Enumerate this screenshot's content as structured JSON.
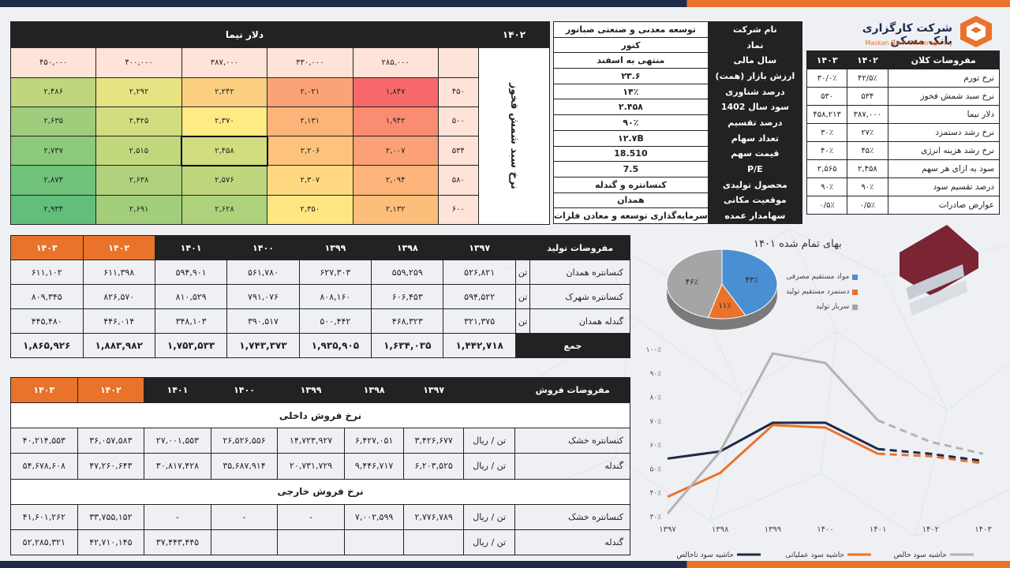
{
  "sensitivity": {
    "year": "۱۴۰۲",
    "header_label": "دلار نیما",
    "row_axis_label": "نرخ سبد شمش فخوز",
    "dollar_values": [
      "۲۸۵,۰۰۰",
      "۳۳۰,۰۰۰",
      "۳۸۷,۰۰۰",
      "۴۰۰,۰۰۰",
      "۴۵۰,۰۰۰"
    ],
    "rows": [
      {
        "rate": "۴۵۰",
        "cells": [
          "۱,۸۴۷",
          "۲,۰۲۱",
          "۲,۲۴۲",
          "۲,۲۹۲",
          "۲,۴۸۶"
        ]
      },
      {
        "rate": "۵۰۰",
        "cells": [
          "۱,۹۴۲",
          "۲,۱۳۱",
          "۲,۳۷۰",
          "۲,۴۲۵",
          "۲,۶۳۵"
        ]
      },
      {
        "rate": "۵۳۴",
        "cells": [
          "۲,۰۰۷",
          "۲,۲۰۶",
          "۲,۴۵۸",
          "۲,۵۱۵",
          "۲,۷۳۷"
        ]
      },
      {
        "rate": "۵۸۰",
        "cells": [
          "۲,۰۹۴",
          "۲,۳۰۷",
          "۲,۵۷۶",
          "۲,۶۳۸",
          "۲,۸۷۴"
        ]
      },
      {
        "rate": "۶۰۰",
        "cells": [
          "۲,۱۳۲",
          "۲,۳۵۰",
          "۲,۶۲۸",
          "۲,۶۹۱",
          "۲,۹۳۴"
        ]
      }
    ],
    "colors": [
      [
        "#f8696b",
        "#fba276",
        "#fbcf7f",
        "#e7e382",
        "#bfd67d"
      ],
      [
        "#fa8c72",
        "#fcb479",
        "#ffea84",
        "#d2dd80",
        "#9fcd7b"
      ],
      [
        "#fca077",
        "#fdc37c",
        "#d2dd80",
        "#c2d87d",
        "#8cc97a"
      ],
      [
        "#fdb47a",
        "#fed981",
        "#bfd67d",
        "#b0d27c",
        "#70c179"
      ],
      [
        "#fdbd7b",
        "#ffe683",
        "#aed27c",
        "#a2ce7b",
        "#63be7b"
      ]
    ],
    "header_color": "#fde3d8"
  },
  "company": {
    "rows": [
      {
        "k": "نام شرکت",
        "v": "توسعه معدنی و صنعتی صبانور"
      },
      {
        "k": "نماد",
        "v": "کنور"
      },
      {
        "k": "سال مالی",
        "v": "منتهی به اسفند"
      },
      {
        "k": "ارزش بازار (همت)",
        "v": "۲۳.۶"
      },
      {
        "k": "درصد شناوری",
        "v": "۱۴٪"
      },
      {
        "k": "سود سال 1402",
        "v": "۲.۴۵۸"
      },
      {
        "k": "درصد تقسیم",
        "v": "۹۰٪"
      },
      {
        "k": "تعداد سهام",
        "v": "۱۲.۷B"
      },
      {
        "k": "قیمت سهم",
        "v": "18.510"
      },
      {
        "k": "P/E",
        "v": "7.5"
      },
      {
        "k": "محصول تولیدی",
        "v": "کنسانتره و گندله"
      },
      {
        "k": "موقعیت مکانی",
        "v": "همدان"
      },
      {
        "k": "سهامدار عمده",
        "v": "سرمایه‌گذاری توسعه و معادن فلزات"
      }
    ]
  },
  "logo": {
    "name": "شرکت کارگزاری بانک مسکن",
    "sub": "Maskan Bank Brokerage co."
  },
  "macro": {
    "header": [
      "مفروضات کلان",
      "۱۴۰۲",
      "۱۴۰۳"
    ],
    "rows": [
      {
        "k": "نرخ تورم",
        "a": "۴۲/۵٪",
        "b": "۳۰/۰٪"
      },
      {
        "k": "نرخ سبد شمش فخوز",
        "a": "۵۳۴",
        "b": "۵۳۰"
      },
      {
        "k": "دلار نیما",
        "a": "۳۸۷,۰۰۰",
        "b": "۴۵۸,۲۱۳"
      },
      {
        "k": "نرخ رشد دستمزد",
        "a": "۲۷٪",
        "b": "۳۰٪"
      },
      {
        "k": "نرخ رشد هزینه انرژی",
        "a": "۴۵٪",
        "b": "۴۰٪"
      },
      {
        "k": "سود به ازای هر سهم",
        "a": "۲,۴۵۸",
        "b": "۲,۵۶۵"
      },
      {
        "k": "درصد تقسیم سود",
        "a": "۹۰٪",
        "b": "۹۰٪"
      },
      {
        "k": "عوارض صادرات",
        "a": "۰/۵٪",
        "b": "۰/۵٪"
      }
    ]
  },
  "production": {
    "header": [
      "مفروضات تولید",
      "",
      "۱۳۹۷",
      "۱۳۹۸",
      "۱۳۹۹",
      "۱۴۰۰",
      "۱۴۰۱",
      "۱۴۰۲",
      "۱۴۰۳"
    ],
    "rows": [
      {
        "k": "کنسانتره همدان",
        "u": "تن",
        "v": [
          "۵۲۶,۸۲۱",
          "۵۵۹,۲۵۹",
          "۶۲۷,۳۰۳",
          "۵۶۱,۷۸۰",
          "۵۹۴,۹۰۱",
          "۶۱۱,۳۹۸",
          "۶۱۱,۱۰۲"
        ]
      },
      {
        "k": "کنسانتره شهرک",
        "u": "تن",
        "v": [
          "۵۹۴,۵۲۲",
          "۶۰۶,۴۵۳",
          "۸۰۸,۱۶۰",
          "۷۹۱,۰۷۶",
          "۸۱۰,۵۲۹",
          "۸۲۶,۵۷۰",
          "۸۰۹,۳۴۵"
        ]
      },
      {
        "k": "گندله همدان",
        "u": "تن",
        "v": [
          "۳۲۱,۳۷۵",
          "۴۶۸,۳۲۳",
          "۵۰۰,۴۴۲",
          "۳۹۰,۵۱۷",
          "۳۴۸,۱۰۳",
          "۴۴۶,۰۱۴",
          "۴۴۵,۴۸۰"
        ]
      }
    ],
    "total": {
      "k": "جمع",
      "v": [
        "۱,۴۴۲,۷۱۸",
        "۱,۶۳۴,۰۳۵",
        "۱,۹۳۵,۹۰۵",
        "۱,۷۴۳,۳۷۳",
        "۱,۷۵۳,۵۳۳",
        "۱,۸۸۳,۹۸۲",
        "۱,۸۶۵,۹۲۶"
      ]
    }
  },
  "sales": {
    "header": [
      "مفروضات فروش",
      "",
      "۱۳۹۷",
      "۱۳۹۸",
      "۱۳۹۹",
      "۱۴۰۰",
      "۱۴۰۱",
      "۱۴۰۲",
      "۱۴۰۳"
    ],
    "domestic_title": "نرخ فروش داخلی",
    "domestic": [
      {
        "k": "کنسانتره خشک",
        "u": "تن / ریال",
        "v": [
          "۳,۴۲۶,۶۷۷",
          "۶,۴۲۷,۰۵۱",
          "۱۴,۷۲۳,۹۲۷",
          "۲۶,۵۲۶,۵۵۶",
          "۲۷,۰۰۱,۵۵۳",
          "۳۶,۰۵۷,۵۸۳",
          "۴۰,۲۱۴,۵۵۳"
        ]
      },
      {
        "k": "گندله",
        "u": "تن / ریال",
        "v": [
          "۶,۲۰۳,۵۲۵",
          "۹,۴۴۶,۷۱۷",
          "۲۰,۷۳۱,۷۲۹",
          "۳۵,۶۸۷,۹۱۴",
          "۳۰,۸۱۷,۴۲۸",
          "۴۷,۲۶۰,۶۴۳",
          "۵۴,۶۷۸,۶۰۸"
        ]
      }
    ],
    "export_title": "نرخ فروش خارجی",
    "export": [
      {
        "k": "کنسانتره خشک",
        "u": "تن / ریال",
        "v": [
          "۲,۷۷۶,۷۸۹",
          "۷,۰۰۲,۵۹۹",
          "-",
          "-",
          "-",
          "۳۳,۷۵۵,۱۵۲",
          "۴۱,۶۰۱,۲۶۲"
        ]
      },
      {
        "k": "گندله",
        "u": "تن / ریال",
        "v": [
          "",
          "",
          "",
          "",
          "۳۷,۴۴۳,۴۴۵",
          "۴۲,۷۱۰,۱۴۵",
          "۵۲,۲۸۵,۳۲۱"
        ]
      }
    ]
  },
  "pie": {
    "title": "بهای تمام شده ۱۴۰۱",
    "slices": [
      {
        "name": "مواد مستقیم مصرفی",
        "value": 43,
        "label": "۴۳٪",
        "color": "#4a8fd4"
      },
      {
        "name": "دستمزد مستقیم تولید",
        "value": 11,
        "label": "۱۱٪",
        "color": "#e9732a"
      },
      {
        "name": "سربار تولید",
        "value": 46,
        "label": "۴۶٪",
        "color": "#a5a5a5"
      }
    ]
  },
  "chart_data": {
    "type": "line",
    "categories": [
      "۱۳۹۷",
      "۱۳۹۸",
      "۱۳۹۹",
      "۱۴۰۰",
      "۱۴۰۱",
      "۱۴۰۲",
      "۱۴۰۳"
    ],
    "ylim": [
      30,
      100
    ],
    "yticks": [
      "۳۰٪",
      "۴۰٪",
      "۵۰٪",
      "۶۰٪",
      "۷۰٪",
      "۸۰٪",
      "۹۰٪",
      "۱۰۰٪"
    ],
    "forecast_from_index": 4,
    "series": [
      {
        "name": "حاشیه سود ناخالص",
        "color": "#1d2a4a",
        "values": [
          54,
          57,
          69,
          69,
          58,
          56,
          53
        ]
      },
      {
        "name": "حاشیه سود عملیاتی",
        "color": "#e9732a",
        "values": [
          38,
          48,
          68,
          67,
          56,
          55,
          52
        ]
      },
      {
        "name": "حاشیه سود خالص",
        "color": "#b3b3b3",
        "values": [
          31,
          57,
          98,
          94,
          70,
          61,
          56
        ]
      }
    ]
  }
}
